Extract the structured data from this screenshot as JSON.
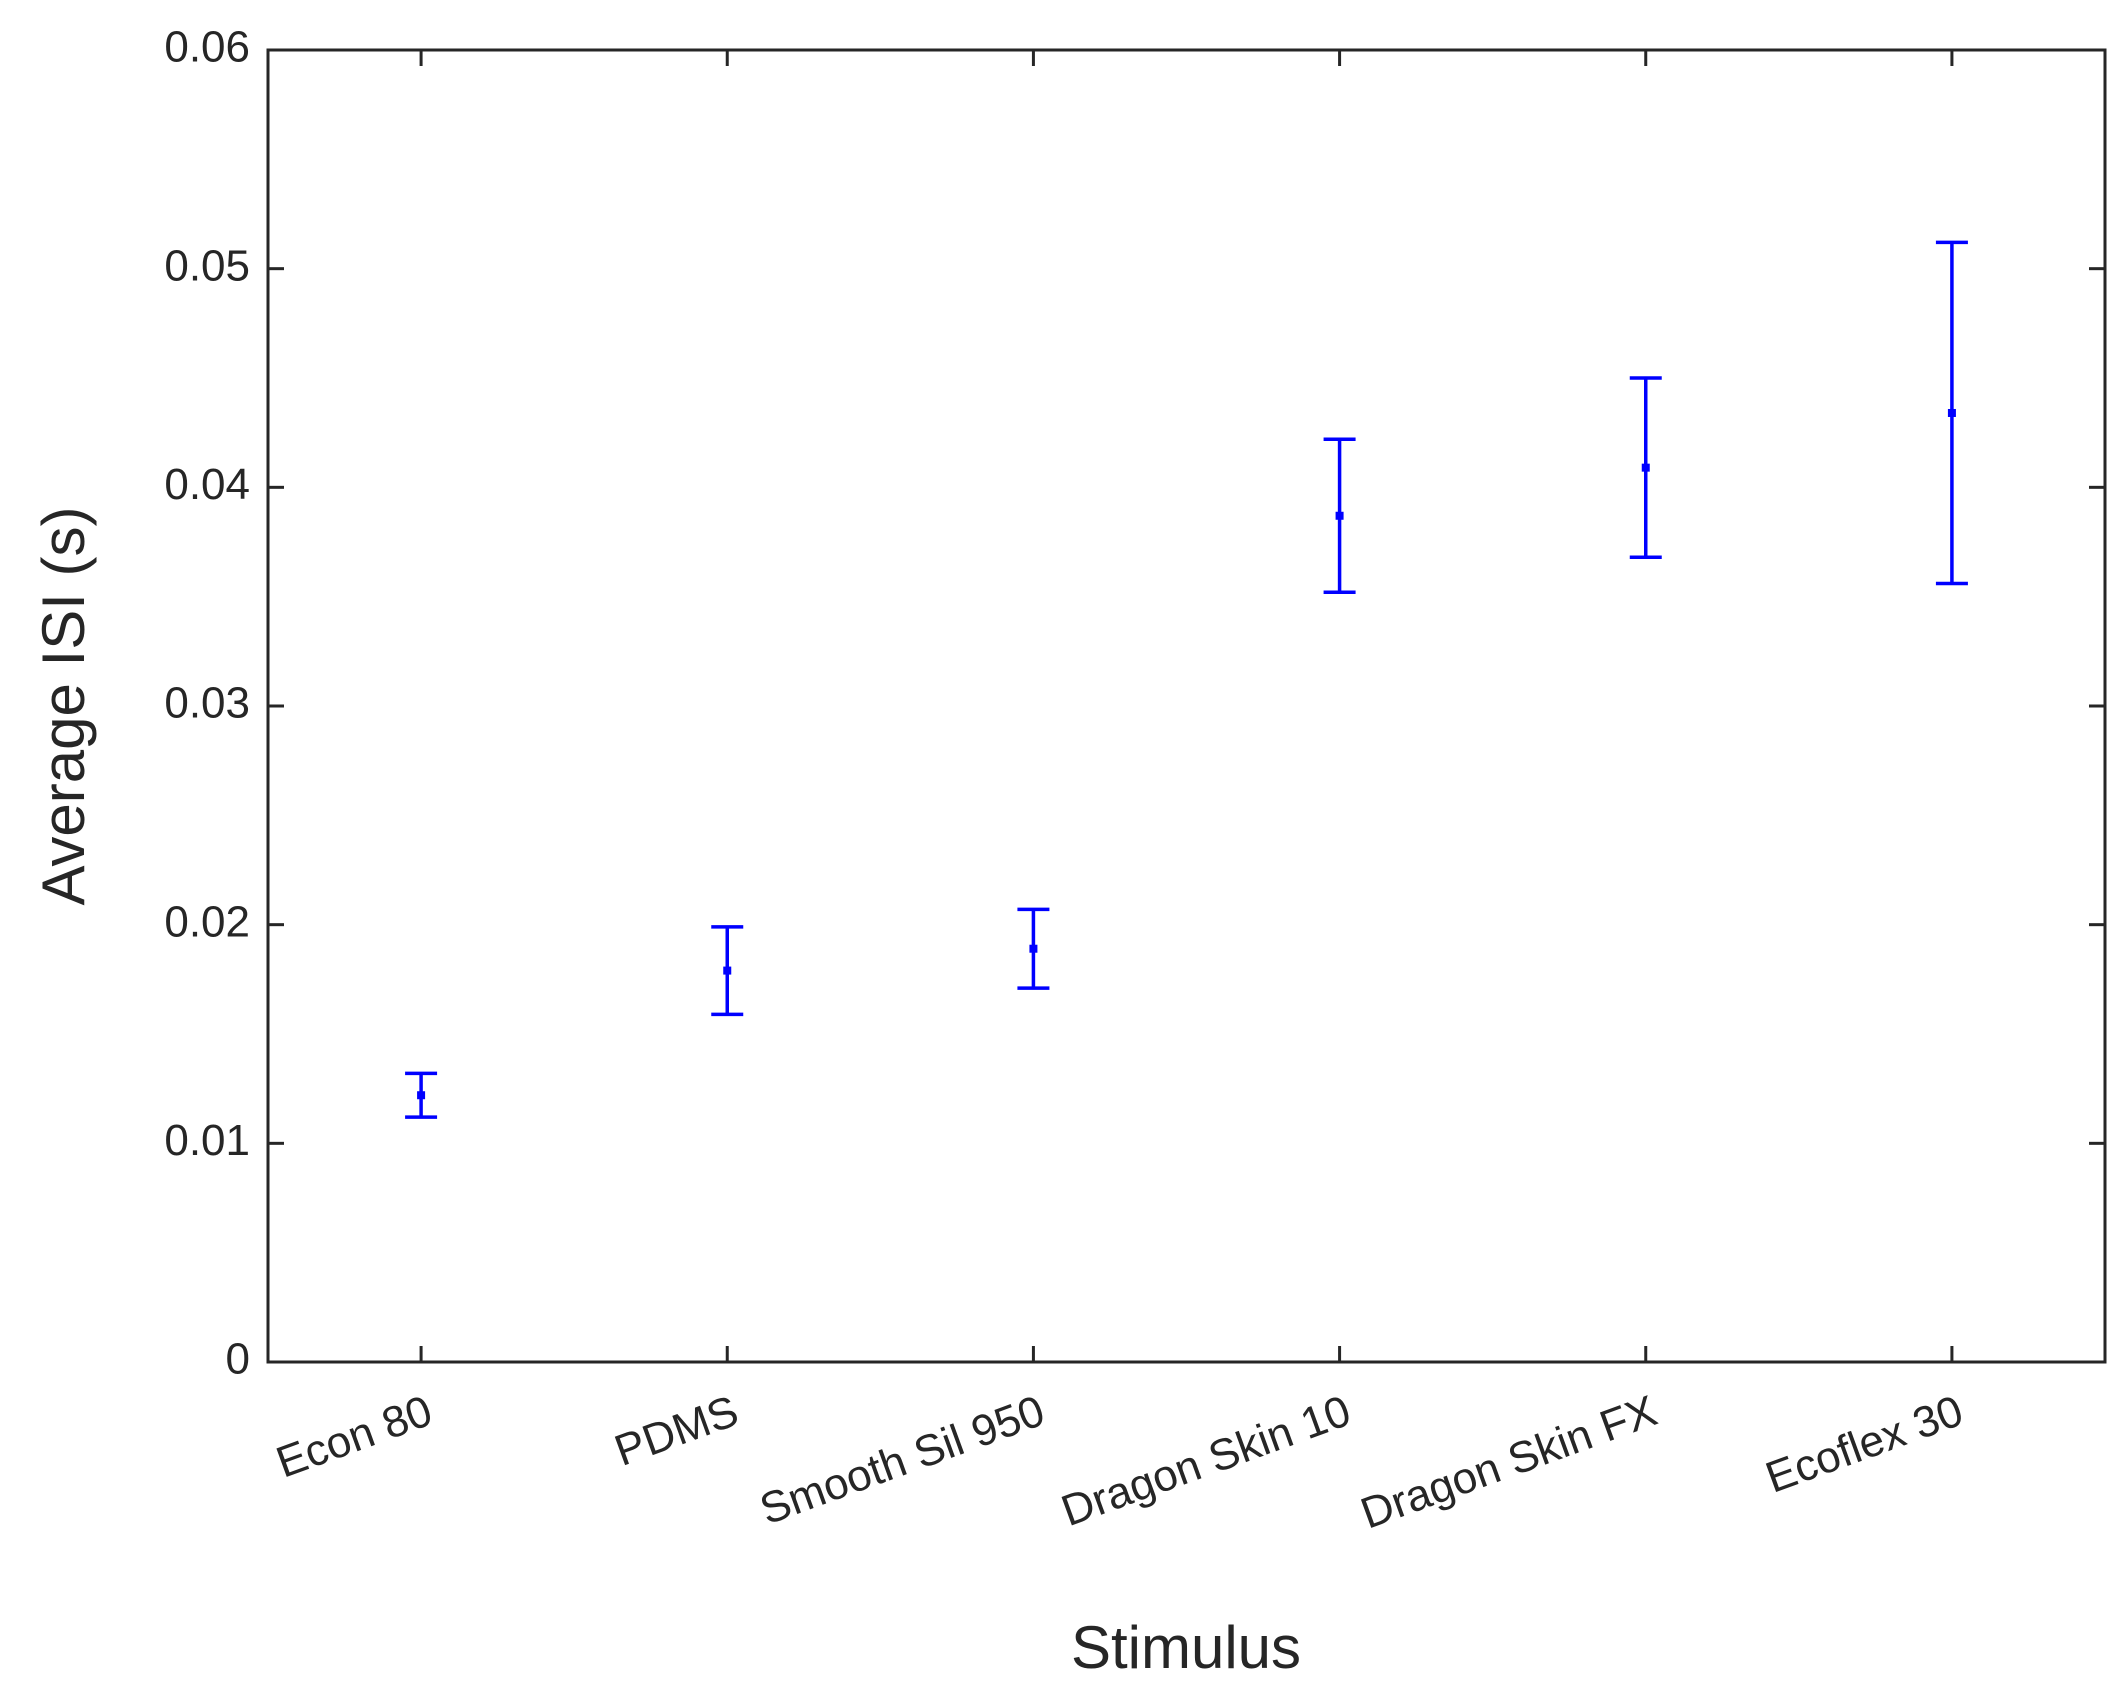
{
  "chart_data": {
    "type": "errorbar",
    "x_label": "Stimulus",
    "y_label": "Average ISI (s)",
    "categories": [
      "Econ 80",
      "PDMS",
      "Smooth Sil 950",
      "Dragon Skin 10",
      "Dragon Skin FX",
      "Ecoflex 30"
    ],
    "values": [
      0.0122,
      0.0179,
      0.0189,
      0.0387,
      0.0409,
      0.0434
    ],
    "errors": [
      0.001,
      0.002,
      0.0018,
      0.0035,
      0.0041,
      0.0078
    ],
    "color": "#0000ff",
    "ylim": [
      0,
      0.06
    ],
    "yticks": [
      0,
      0.01,
      0.02,
      0.03,
      0.04,
      0.05,
      0.06
    ],
    "grid": false
  }
}
